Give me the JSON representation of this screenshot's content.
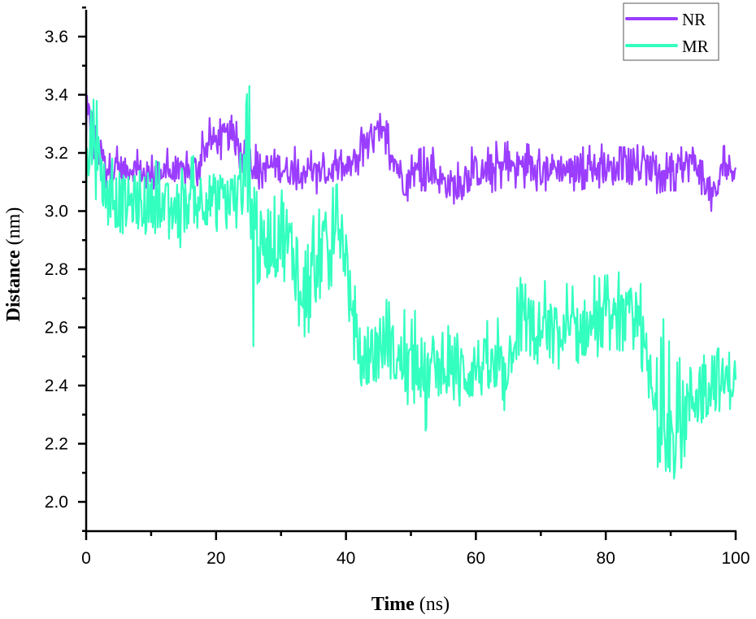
{
  "chart_data": {
    "type": "line",
    "title": "",
    "xlabel": "Time (ns)",
    "xlabel_bold": "Time",
    "xlabel_unit": "(ns)",
    "ylabel": "Distance (nm)",
    "ylabel_bold": "Distance",
    "ylabel_unit": "(nm)",
    "xlim": [
      0,
      100
    ],
    "ylim": [
      1.9,
      3.7
    ],
    "xticks": [
      0,
      20,
      40,
      60,
      80,
      100
    ],
    "xtick_labels": [
      "0",
      "20",
      "40",
      "60",
      "80",
      "100"
    ],
    "yticks": [
      2.0,
      2.2,
      2.4,
      2.6,
      2.8,
      3.0,
      3.2,
      3.4,
      3.6
    ],
    "ytick_labels": [
      "2.0",
      "2.2",
      "2.4",
      "2.6",
      "2.8",
      "3.0",
      "3.2",
      "3.4",
      "3.6"
    ],
    "grid": false,
    "legend_position": "top-right",
    "series": [
      {
        "name": "NR",
        "color": "#9B3DFF",
        "x": [
          0,
          1,
          2,
          3,
          4,
          5,
          6,
          7,
          8,
          9,
          10,
          11,
          12,
          13,
          14,
          15,
          16,
          17,
          18,
          19,
          20,
          21,
          22,
          23,
          24,
          25,
          26,
          27,
          28,
          29,
          30,
          31,
          32,
          33,
          34,
          35,
          36,
          37,
          38,
          39,
          40,
          41,
          42,
          43,
          44,
          45,
          46,
          47,
          48,
          49,
          50,
          51,
          52,
          53,
          54,
          55,
          56,
          57,
          58,
          59,
          60,
          61,
          62,
          63,
          64,
          65,
          66,
          67,
          68,
          69,
          70,
          71,
          72,
          73,
          74,
          75,
          76,
          77,
          78,
          79,
          80,
          81,
          82,
          83,
          84,
          85,
          86,
          87,
          88,
          89,
          90,
          91,
          92,
          93,
          94,
          95,
          96,
          97,
          98,
          99,
          100
        ],
        "mean": [
          3.3,
          3.3,
          3.2,
          3.16,
          3.14,
          3.15,
          3.14,
          3.15,
          3.14,
          3.13,
          3.13,
          3.13,
          3.14,
          3.13,
          3.12,
          3.13,
          3.14,
          3.15,
          3.2,
          3.24,
          3.24,
          3.25,
          3.26,
          3.24,
          3.22,
          3.18,
          3.16,
          3.15,
          3.15,
          3.16,
          3.15,
          3.14,
          3.14,
          3.15,
          3.14,
          3.13,
          3.13,
          3.13,
          3.14,
          3.14,
          3.14,
          3.16,
          3.2,
          3.23,
          3.26,
          3.27,
          3.25,
          3.21,
          3.15,
          3.1,
          3.12,
          3.14,
          3.14,
          3.15,
          3.12,
          3.1,
          3.09,
          3.08,
          3.12,
          3.14,
          3.14,
          3.13,
          3.14,
          3.15,
          3.15,
          3.16,
          3.15,
          3.16,
          3.15,
          3.14,
          3.14,
          3.15,
          3.15,
          3.15,
          3.14,
          3.14,
          3.15,
          3.15,
          3.15,
          3.15,
          3.15,
          3.14,
          3.14,
          3.15,
          3.14,
          3.15,
          3.14,
          3.15,
          3.14,
          3.15,
          3.15,
          3.14,
          3.15,
          3.17,
          3.16,
          3.12,
          3.07,
          3.06,
          3.14,
          3.15,
          3.15
        ],
        "min": [
          3.15,
          3.2,
          3.12,
          3.08,
          3.07,
          3.07,
          3.08,
          3.09,
          3.08,
          3.08,
          3.08,
          3.07,
          3.08,
          3.07,
          3.05,
          3.07,
          3.07,
          3.08,
          3.14,
          3.17,
          3.17,
          3.18,
          3.19,
          3.16,
          3.14,
          3.08,
          3.07,
          3.08,
          3.08,
          3.08,
          3.07,
          3.07,
          3.07,
          3.08,
          3.07,
          3.06,
          3.06,
          3.06,
          3.07,
          3.08,
          3.08,
          3.09,
          3.13,
          3.17,
          3.2,
          3.21,
          3.18,
          3.13,
          3.06,
          3.02,
          3.05,
          3.07,
          3.07,
          3.07,
          3.04,
          3.02,
          3.01,
          2.97,
          3.05,
          3.07,
          3.07,
          3.06,
          3.06,
          3.07,
          3.08,
          3.08,
          3.08,
          3.08,
          3.08,
          3.07,
          3.07,
          3.07,
          3.08,
          3.08,
          3.06,
          3.07,
          3.07,
          3.08,
          3.08,
          3.08,
          3.08,
          3.06,
          3.07,
          3.07,
          3.06,
          3.07,
          3.06,
          3.07,
          3.06,
          3.07,
          3.07,
          3.07,
          3.07,
          3.09,
          3.08,
          3.05,
          3.0,
          3.0,
          3.07,
          3.1,
          3.1
        ],
        "max": [
          3.44,
          3.4,
          3.28,
          3.24,
          3.23,
          3.22,
          3.2,
          3.22,
          3.21,
          3.2,
          3.19,
          3.2,
          3.22,
          3.21,
          3.18,
          3.2,
          3.21,
          3.23,
          3.28,
          3.32,
          3.31,
          3.32,
          3.34,
          3.31,
          3.29,
          3.25,
          3.23,
          3.22,
          3.23,
          3.24,
          3.22,
          3.21,
          3.22,
          3.23,
          3.22,
          3.2,
          3.2,
          3.2,
          3.21,
          3.21,
          3.21,
          3.23,
          3.28,
          3.3,
          3.33,
          3.34,
          3.32,
          3.28,
          3.22,
          3.17,
          3.19,
          3.21,
          3.22,
          3.23,
          3.2,
          3.17,
          3.16,
          3.16,
          3.19,
          3.22,
          3.22,
          3.21,
          3.22,
          3.24,
          3.23,
          3.24,
          3.23,
          3.24,
          3.23,
          3.22,
          3.21,
          3.22,
          3.22,
          3.23,
          3.21,
          3.21,
          3.22,
          3.22,
          3.23,
          3.23,
          3.23,
          3.21,
          3.22,
          3.22,
          3.21,
          3.23,
          3.22,
          3.23,
          3.21,
          3.22,
          3.23,
          3.22,
          3.22,
          3.29,
          3.24,
          3.2,
          3.14,
          3.12,
          3.22,
          3.24,
          3.23
        ]
      },
      {
        "name": "MR",
        "color": "#33FFBF",
        "x": [
          0,
          1,
          2,
          3,
          4,
          5,
          6,
          7,
          8,
          9,
          10,
          11,
          12,
          13,
          14,
          15,
          16,
          17,
          18,
          19,
          20,
          21,
          22,
          23,
          24,
          25,
          26,
          27,
          28,
          29,
          30,
          31,
          32,
          33,
          34,
          35,
          36,
          37,
          38,
          39,
          40,
          41,
          42,
          43,
          44,
          45,
          46,
          47,
          48,
          49,
          50,
          51,
          52,
          53,
          54,
          55,
          56,
          57,
          58,
          59,
          60,
          61,
          62,
          63,
          64,
          65,
          66,
          67,
          68,
          69,
          70,
          71,
          72,
          73,
          74,
          75,
          76,
          77,
          78,
          79,
          80,
          81,
          82,
          83,
          84,
          85,
          86,
          87,
          88,
          89,
          90,
          91,
          92,
          93,
          94,
          95,
          96,
          97,
          98,
          99,
          100
        ],
        "mean": [
          3.1,
          3.3,
          3.15,
          3.08,
          3.05,
          3.03,
          3.02,
          3.03,
          3.05,
          3.04,
          3.03,
          3.03,
          3.02,
          3.01,
          3.0,
          3.01,
          3.03,
          3.05,
          3.05,
          3.04,
          3.04,
          3.05,
          3.05,
          3.05,
          3.06,
          3.1,
          2.95,
          2.85,
          2.9,
          2.92,
          2.95,
          2.88,
          2.85,
          2.8,
          2.75,
          2.85,
          2.88,
          2.88,
          2.9,
          2.96,
          2.85,
          2.6,
          2.52,
          2.5,
          2.52,
          2.53,
          2.55,
          2.52,
          2.48,
          2.48,
          2.46,
          2.5,
          2.42,
          2.45,
          2.5,
          2.52,
          2.5,
          2.48,
          2.45,
          2.44,
          2.47,
          2.46,
          2.45,
          2.44,
          2.43,
          2.48,
          2.6,
          2.65,
          2.63,
          2.6,
          2.58,
          2.58,
          2.59,
          2.56,
          2.57,
          2.57,
          2.59,
          2.6,
          2.6,
          2.6,
          2.61,
          2.61,
          2.62,
          2.62,
          2.64,
          2.6,
          2.5,
          2.38,
          2.25,
          2.28,
          2.25,
          2.22,
          2.3,
          2.35,
          2.38,
          2.4,
          2.42,
          2.44,
          2.4,
          2.42,
          2.42
        ],
        "min": [
          2.9,
          3.1,
          2.98,
          2.96,
          2.94,
          2.88,
          2.9,
          2.91,
          2.94,
          2.92,
          2.93,
          2.92,
          2.92,
          2.9,
          2.85,
          2.9,
          2.93,
          2.94,
          2.95,
          2.93,
          2.93,
          2.94,
          2.94,
          2.94,
          2.96,
          2.7,
          2.48,
          2.7,
          2.75,
          2.77,
          2.8,
          2.68,
          2.62,
          2.6,
          2.55,
          2.68,
          2.7,
          2.72,
          2.75,
          2.8,
          2.65,
          2.48,
          2.4,
          2.4,
          2.42,
          2.41,
          2.43,
          2.38,
          2.34,
          2.35,
          2.32,
          2.36,
          2.22,
          2.32,
          2.36,
          2.38,
          2.37,
          2.34,
          2.32,
          2.31,
          2.34,
          2.32,
          2.32,
          2.29,
          2.3,
          2.34,
          2.48,
          2.52,
          2.51,
          2.49,
          2.46,
          2.46,
          2.48,
          2.45,
          2.46,
          2.47,
          2.48,
          2.49,
          2.5,
          2.5,
          2.51,
          2.51,
          2.52,
          2.52,
          2.54,
          2.48,
          2.35,
          2.2,
          2.12,
          2.15,
          2.1,
          2.06,
          2.15,
          2.2,
          2.25,
          2.28,
          2.3,
          2.32,
          2.3,
          2.31,
          2.33
        ],
        "max": [
          3.4,
          3.51,
          3.3,
          3.22,
          3.18,
          3.2,
          3.18,
          3.16,
          3.2,
          3.26,
          3.18,
          3.17,
          3.16,
          3.15,
          3.14,
          3.15,
          3.18,
          3.2,
          3.22,
          3.2,
          3.18,
          3.19,
          3.19,
          3.2,
          3.2,
          3.47,
          3.15,
          3.06,
          3.12,
          3.15,
          3.28,
          3.1,
          3.05,
          3.0,
          3.0,
          3.25,
          3.08,
          3.05,
          3.08,
          3.1,
          3.02,
          2.78,
          2.68,
          2.66,
          2.72,
          2.76,
          2.7,
          2.68,
          2.64,
          2.66,
          2.62,
          2.68,
          2.6,
          2.62,
          2.68,
          2.71,
          2.67,
          2.65,
          2.62,
          2.61,
          2.64,
          2.63,
          2.62,
          2.65,
          2.6,
          2.63,
          2.8,
          3.0,
          2.82,
          2.8,
          2.76,
          2.76,
          2.78,
          2.74,
          2.75,
          2.74,
          2.77,
          2.79,
          2.78,
          2.77,
          2.78,
          2.78,
          2.79,
          2.8,
          2.84,
          2.78,
          2.7,
          2.6,
          2.48,
          2.65,
          2.52,
          2.48,
          2.52,
          2.56,
          2.62,
          2.66,
          2.66,
          2.68,
          2.58,
          2.62,
          2.54
        ]
      }
    ]
  },
  "legend": {
    "items": [
      {
        "label": "NR",
        "color": "#9B3DFF"
      },
      {
        "label": "MR",
        "color": "#33FFBF"
      }
    ]
  },
  "axes": {
    "x_title_bold": "Time",
    "x_title_unit": "(ns)",
    "y_title_bold": "Distance",
    "y_title_unit": "(nm)"
  }
}
